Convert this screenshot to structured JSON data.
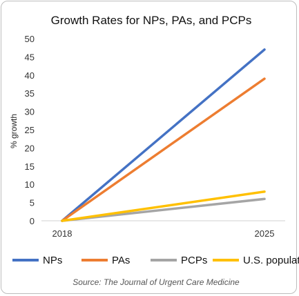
{
  "chart_data": {
    "type": "line",
    "title": "Growth Rates for NPs, PAs, and PCPs",
    "xlabel": "",
    "ylabel": "% growth",
    "x": [
      "2018",
      "2025"
    ],
    "ylim": [
      0,
      50
    ],
    "yticks": [
      0,
      5,
      10,
      15,
      20,
      25,
      30,
      35,
      40,
      45,
      50
    ],
    "grid": false,
    "legend_position": "bottom",
    "series": [
      {
        "name": "NPs",
        "values": [
          0,
          47
        ],
        "color": "#4472C4"
      },
      {
        "name": "PAs",
        "values": [
          0,
          39
        ],
        "color": "#ED7D31"
      },
      {
        "name": "PCPs",
        "values": [
          0,
          6
        ],
        "color": "#A5A5A5"
      },
      {
        "name": "U.S. population",
        "values": [
          0,
          8
        ],
        "color": "#FFC000"
      }
    ],
    "source": "Source: The Journal of Urgent Care Medicine"
  }
}
